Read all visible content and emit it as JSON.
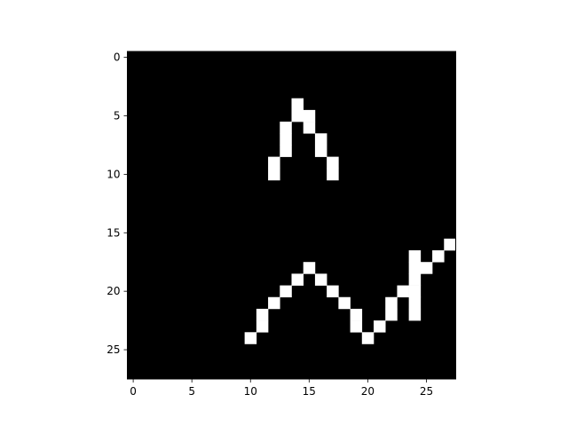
{
  "chart_data": {
    "type": "heatmap",
    "colormap": "gray",
    "title": "",
    "xlabel": "",
    "ylabel": "",
    "grid": false,
    "legend": "none",
    "colors": {
      "background": "#000000",
      "pixel_on": "#ffffff",
      "frame": "#000000"
    },
    "shape": [
      28,
      28
    ],
    "xlim": [
      -0.5,
      27.5
    ],
    "ylim": [
      27.5,
      -0.5
    ],
    "x_ticks": [
      0,
      5,
      10,
      15,
      20,
      25
    ],
    "y_ticks": [
      0,
      5,
      10,
      15,
      20,
      25
    ],
    "x_tick_labels": [
      "0",
      "5",
      "10",
      "15",
      "20",
      "25"
    ],
    "y_tick_labels": [
      "0",
      "5",
      "10",
      "15",
      "20",
      "25"
    ],
    "on_pixels": [
      {
        "row": 4,
        "cols": [
          14
        ]
      },
      {
        "row": 5,
        "cols": [
          14,
          15
        ]
      },
      {
        "row": 6,
        "cols": [
          13,
          15
        ]
      },
      {
        "row": 7,
        "cols": [
          13,
          16
        ]
      },
      {
        "row": 8,
        "cols": [
          13,
          16
        ]
      },
      {
        "row": 9,
        "cols": [
          12,
          17
        ]
      },
      {
        "row": 10,
        "cols": [
          12,
          17
        ]
      },
      {
        "row": 16,
        "cols": [
          27
        ]
      },
      {
        "row": 17,
        "cols": [
          24,
          26
        ]
      },
      {
        "row": 18,
        "cols": [
          15,
          24,
          25
        ]
      },
      {
        "row": 19,
        "cols": [
          14,
          16,
          24
        ]
      },
      {
        "row": 20,
        "cols": [
          13,
          17,
          23,
          24
        ]
      },
      {
        "row": 21,
        "cols": [
          12,
          18,
          22,
          24
        ]
      },
      {
        "row": 22,
        "cols": [
          11,
          19,
          22,
          24
        ]
      },
      {
        "row": 23,
        "cols": [
          11,
          19,
          21
        ]
      },
      {
        "row": 24,
        "cols": [
          10,
          20
        ]
      }
    ]
  }
}
